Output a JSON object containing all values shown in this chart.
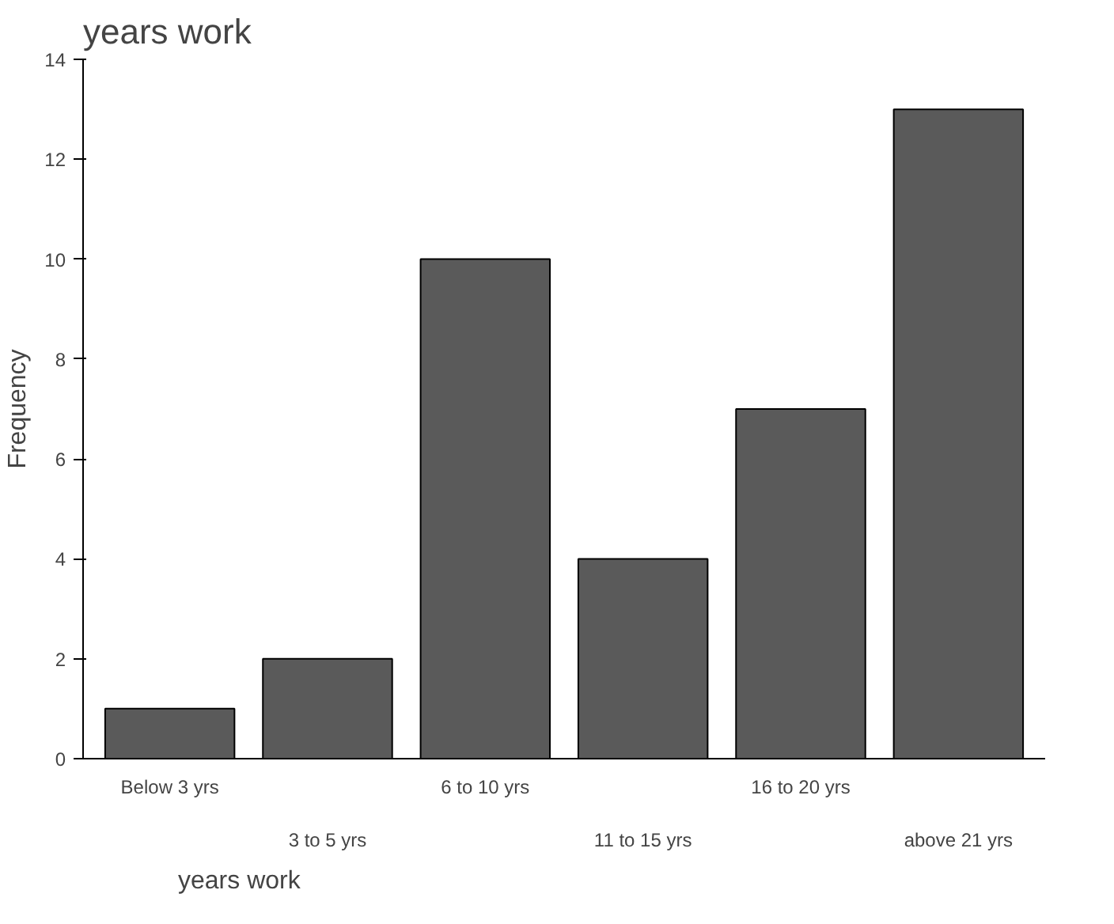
{
  "chart_data": {
    "type": "bar",
    "title": "years work",
    "xlabel": "years work",
    "ylabel": "Frequency",
    "categories": [
      "Below 3 yrs",
      "3 to 5 yrs",
      "6 to 10 yrs",
      "11 to 15 yrs",
      "16 to 20 yrs",
      "above 21 yrs"
    ],
    "values": [
      1,
      2,
      10,
      4,
      7,
      13
    ],
    "color": "#5a5a5a",
    "ylim": [
      0,
      14
    ],
    "yticks": [
      0,
      2,
      4,
      6,
      8,
      10,
      12,
      14
    ],
    "grid": false
  }
}
